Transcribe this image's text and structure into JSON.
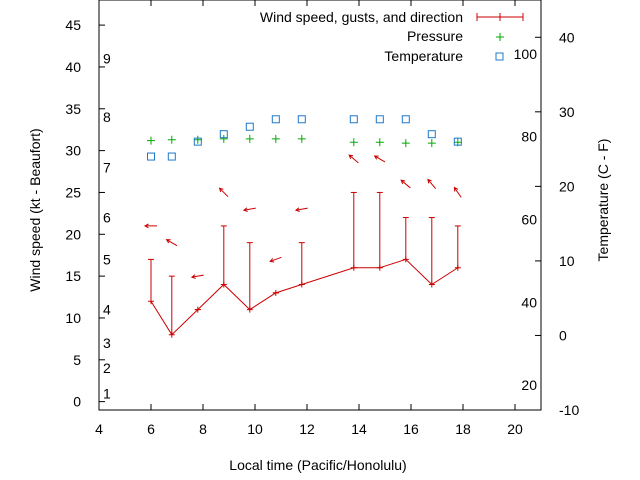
{
  "chart_data": {
    "type": "line",
    "xlabel": "Local time (Pacific/Honolulu)",
    "ylabel_left": "Wind speed (kt - Beaufort)",
    "ylabel_right": "Temperature (C - F)",
    "xlim": [
      4,
      21
    ],
    "ylim": [
      -1,
      48
    ],
    "temp_c_lim": [
      -10,
      45
    ],
    "x_ticks": [
      "4",
      "6",
      "8",
      "10",
      "12",
      "14",
      "16",
      "18",
      "20"
    ],
    "y_ticks": [
      "0",
      "5",
      "10",
      "15",
      "20",
      "25",
      "30",
      "35",
      "40",
      "45"
    ],
    "temp_c_ticks": [
      "-10",
      "0",
      "10",
      "20",
      "30",
      "40"
    ],
    "temp_f_ticks": [
      "20",
      "40",
      "60",
      "80",
      "100"
    ],
    "beaufort_ticks": [
      "1",
      "2",
      "3",
      "4",
      "5",
      "6",
      "7",
      "8",
      "9"
    ],
    "legend": {
      "wind": "Wind speed, gusts, and direction",
      "pressure": "Pressure",
      "temperature": "Temperature"
    },
    "colors": {
      "wind": "#cc0000",
      "pressure": "#00aa00",
      "temperature": "#1f78c8",
      "axis": "#000000"
    },
    "wind_speed": {
      "x": [
        6,
        6.8,
        7.8,
        8.8,
        9.8,
        10.8,
        11.8,
        13.8,
        14.8,
        15.8,
        16.8,
        17.8
      ],
      "speed": [
        12,
        8,
        11,
        14,
        11,
        13,
        14,
        16,
        16,
        17,
        14,
        16
      ],
      "gust": [
        17,
        15,
        11,
        21,
        19,
        13,
        19,
        25,
        25,
        22,
        22,
        21
      ]
    },
    "wind_direction": {
      "x": [
        6,
        6.8,
        7.8,
        8.8,
        9.8,
        10.8,
        11.8,
        13.8,
        14.8,
        15.8,
        16.8,
        17.8
      ],
      "y": [
        21,
        19,
        15,
        25,
        23,
        17,
        23,
        29,
        29,
        26,
        26,
        25
      ],
      "angle_deg": [
        180,
        150,
        190,
        135,
        190,
        200,
        190,
        140,
        150,
        140,
        130,
        125
      ]
    },
    "pressure": {
      "x": [
        6,
        6.8,
        7.8,
        8.8,
        9.8,
        10.8,
        11.8,
        13.8,
        14.8,
        15.8,
        16.8,
        17.8
      ],
      "y": [
        31.2,
        31.3,
        31.3,
        31.4,
        31.4,
        31.4,
        31.4,
        31.0,
        31.0,
        30.9,
        30.9,
        31.0
      ]
    },
    "temperature": {
      "x": [
        6,
        6.8,
        7.8,
        8.8,
        9.8,
        10.8,
        11.8,
        13.8,
        14.8,
        15.8,
        16.8,
        17.8
      ],
      "y_celsius": [
        24,
        24,
        26,
        27,
        28,
        29,
        29,
        29,
        29,
        29,
        27,
        26
      ]
    }
  }
}
